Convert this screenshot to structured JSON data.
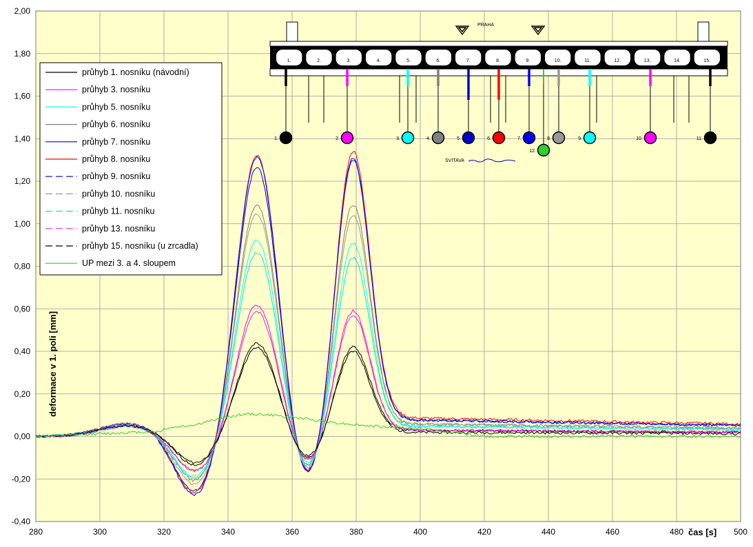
{
  "chart_data": {
    "type": "line",
    "xlabel": "čas [s]",
    "ylabel": "deformace v 1. poli [mm]",
    "xlim": [
      280,
      500
    ],
    "ylim": [
      -0.4,
      2.0
    ],
    "x_ticks": [
      "280",
      "300",
      "320",
      "340",
      "360",
      "380",
      "400",
      "420",
      "440",
      "460",
      "480",
      "500"
    ],
    "y_ticks": [
      "-0,40",
      "-0,20",
      "0,00",
      "0,20",
      "0,40",
      "0,60",
      "0,80",
      "1,00",
      "1,20",
      "1,40",
      "1,60",
      "1,80",
      "2,00"
    ],
    "grid": true,
    "legend_position": "top-left",
    "background": "#ffffcc",
    "series": [
      {
        "name": "průhyb 1. nosníku (návodní)",
        "color": "#000000",
        "dash": false,
        "pre": 0.05,
        "dip1": -0.14,
        "peak1": 0.44,
        "dip2": -0.13,
        "peak2": 0.42,
        "tail": 0.03
      },
      {
        "name": "průhyb 3. nosníku",
        "color": "#ff00ff",
        "dash": false,
        "pre": 0.05,
        "dip1": -0.17,
        "peak1": 0.62,
        "dip2": -0.15,
        "peak2": 0.59,
        "tail": 0.03
      },
      {
        "name": "průhyb 5. nosníku",
        "color": "#00ffff",
        "dash": false,
        "pre": 0.05,
        "dip1": -0.2,
        "peak1": 0.93,
        "dip2": -0.19,
        "peak2": 0.91,
        "tail": 0.05
      },
      {
        "name": "průhyb 6. nosníku",
        "color": "#808080",
        "dash": false,
        "pre": 0.06,
        "dip1": -0.22,
        "peak1": 1.09,
        "dip2": -0.21,
        "peak2": 1.09,
        "tail": 0.06
      },
      {
        "name": "průhyb 7. nosníku",
        "color": "#0000cc",
        "dash": false,
        "pre": 0.06,
        "dip1": -0.27,
        "peak1": 1.27,
        "dip2": -0.25,
        "peak2": 1.3,
        "tail": 0.08
      },
      {
        "name": "průhyb 8. nosníku",
        "color": "#ff0000",
        "dash": false,
        "pre": 0.06,
        "dip1": -0.28,
        "peak1": 1.33,
        "dip2": -0.26,
        "peak2": 1.34,
        "tail": 0.09
      },
      {
        "name": "průhyb 9. nosníku",
        "color": "#0000ff",
        "dash": true,
        "pre": 0.06,
        "dip1": -0.29,
        "peak1": 1.32,
        "dip2": -0.26,
        "peak2": 1.31,
        "tail": 0.08
      },
      {
        "name": "průhyb 10. nosníku",
        "color": "#999999",
        "dash": true,
        "pre": 0.06,
        "dip1": -0.24,
        "peak1": 1.05,
        "dip2": -0.22,
        "peak2": 1.04,
        "tail": 0.06
      },
      {
        "name": "průhyb 11. nosníku",
        "color": "#00e5e5",
        "dash": true,
        "pre": 0.05,
        "dip1": -0.21,
        "peak1": 0.87,
        "dip2": -0.2,
        "peak2": 0.84,
        "tail": 0.05
      },
      {
        "name": "průhyb 13. nosníku",
        "color": "#cc33cc",
        "dash": true,
        "pre": 0.05,
        "dip1": -0.17,
        "peak1": 0.59,
        "dip2": -0.15,
        "peak2": 0.57,
        "tail": 0.03
      },
      {
        "name": "průhyb 15. nosníku (u zrcadla)",
        "color": "#000000",
        "dash": true,
        "pre": 0.05,
        "dip1": -0.13,
        "peak1": 0.42,
        "dip2": -0.12,
        "peak2": 0.4,
        "tail": 0.02
      },
      {
        "name": "UP mezi 3. a 4. sloupem",
        "color": "#33cc33",
        "dash": false,
        "type": "flat"
      }
    ]
  },
  "diagram": {
    "direction_label": "PRAHA",
    "river_label": "SVITAVA",
    "span_labels": [
      "1.",
      "2.",
      "3.",
      "4.",
      "5.",
      "6.",
      "7.",
      "8.",
      "9.",
      "10.",
      "11.",
      "12.",
      "13.",
      "14.",
      "15."
    ],
    "sensors": [
      {
        "label": "1.",
        "color": "#000000"
      },
      {
        "label": "2.",
        "color": "#ff00ff"
      },
      {
        "label": "3.",
        "color": "#00ffff"
      },
      {
        "label": "4.",
        "color": "#808080"
      },
      {
        "label": "5.",
        "color": "#0000cc"
      },
      {
        "label": "6.",
        "color": "#ff0000"
      },
      {
        "label": "7.",
        "color": "#0000ff"
      },
      {
        "label": "8.",
        "color": "#999999"
      },
      {
        "label": "9.",
        "color": "#00ffff"
      },
      {
        "label": "10.",
        "color": "#ff00ff"
      },
      {
        "label": "11.",
        "color": "#000000"
      },
      {
        "label": "12.",
        "color": "#33cc33"
      }
    ]
  }
}
